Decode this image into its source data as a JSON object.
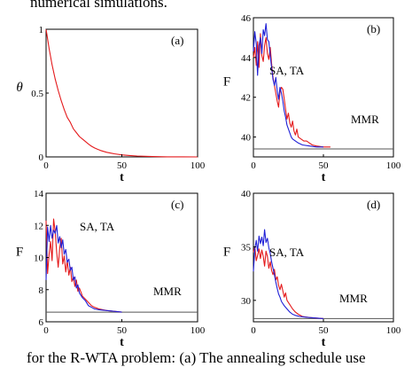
{
  "header_text": "numerical simulations.",
  "footer_text": "for the R-WTA problem: (a) The annealing schedule use",
  "colors": {
    "red": "#e41a1c",
    "blue": "#1f1fd6",
    "ref": "#555555",
    "frame": "#000000"
  },
  "chart_data": [
    {
      "type": "line",
      "panel_label": "(a)",
      "xlabel": "t",
      "ylabel": "θ",
      "xlim": [
        0,
        100
      ],
      "ylim": [
        0,
        1
      ],
      "xticks": [
        "0",
        "50",
        "100"
      ],
      "yticks": [
        "0",
        "0.5",
        "1"
      ],
      "annotations": [],
      "ref_line": null,
      "series": [
        {
          "color": "red",
          "points": [
            [
              0,
              1.0
            ],
            [
              2,
              0.85
            ],
            [
              4,
              0.72
            ],
            [
              6,
              0.61
            ],
            [
              8,
              0.52
            ],
            [
              10,
              0.44
            ],
            [
              12,
              0.37
            ],
            [
              14,
              0.31
            ],
            [
              16,
              0.27
            ],
            [
              18,
              0.22
            ],
            [
              20,
              0.19
            ],
            [
              22,
              0.16
            ],
            [
              24,
              0.14
            ],
            [
              26,
              0.12
            ],
            [
              28,
              0.1
            ],
            [
              30,
              0.083
            ],
            [
              32,
              0.07
            ],
            [
              34,
              0.06
            ],
            [
              36,
              0.05
            ],
            [
              38,
              0.043
            ],
            [
              40,
              0.036
            ],
            [
              45,
              0.024
            ],
            [
              50,
              0.016
            ],
            [
              55,
              0.011
            ],
            [
              60,
              0.007
            ],
            [
              70,
              0.003
            ],
            [
              80,
              0.001
            ],
            [
              90,
              0.0005
            ],
            [
              100,
              0.0
            ]
          ]
        }
      ]
    },
    {
      "type": "line",
      "panel_label": "(b)",
      "xlabel": "t",
      "ylabel": "F",
      "xlim": [
        0,
        100
      ],
      "ylim": [
        39,
        46
      ],
      "xticks": [
        "0",
        "50",
        "100"
      ],
      "yticks": [
        "40",
        "42",
        "44",
        "46"
      ],
      "annotations": [
        "SA, TA",
        "MMR"
      ],
      "ref_line": {
        "y": 39.4,
        "x_end": 100
      },
      "series": [
        {
          "color": "red",
          "points": [
            [
              0,
              44.0
            ],
            [
              1,
              44.5
            ],
            [
              2,
              43.6
            ],
            [
              3,
              44.8
            ],
            [
              4,
              43.5
            ],
            [
              5,
              45.2
            ],
            [
              6,
              44.1
            ],
            [
              7,
              43.8
            ],
            [
              8,
              44.6
            ],
            [
              9,
              45.0
            ],
            [
              10,
              44.2
            ],
            [
              11,
              43.9
            ],
            [
              12,
              44.5
            ],
            [
              13,
              43.7
            ],
            [
              14,
              43.0
            ],
            [
              15,
              42.6
            ],
            [
              16,
              42.2
            ],
            [
              17,
              41.8
            ],
            [
              18,
              41.5
            ],
            [
              19,
              42.3
            ],
            [
              20,
              42.5
            ],
            [
              21,
              42.4
            ],
            [
              22,
              41.9
            ],
            [
              23,
              41.4
            ],
            [
              24,
              40.9
            ],
            [
              25,
              41.2
            ],
            [
              26,
              40.7
            ],
            [
              27,
              40.5
            ],
            [
              28,
              40.8
            ],
            [
              29,
              40.3
            ],
            [
              30,
              40.1
            ],
            [
              31,
              40.4
            ],
            [
              32,
              40.0
            ],
            [
              34,
              39.9
            ],
            [
              36,
              39.8
            ],
            [
              38,
              39.8
            ],
            [
              40,
              39.7
            ],
            [
              42,
              39.6
            ],
            [
              45,
              39.55
            ],
            [
              50,
              39.5
            ],
            [
              55,
              39.5
            ]
          ]
        },
        {
          "color": "blue",
          "points": [
            [
              0,
              44.3
            ],
            [
              1,
              45.3
            ],
            [
              2,
              44.7
            ],
            [
              3,
              43.1
            ],
            [
              4,
              44.6
            ],
            [
              5,
              45.0
            ],
            [
              6,
              44.2
            ],
            [
              7,
              45.4
            ],
            [
              8,
              45.1
            ],
            [
              9,
              45.7
            ],
            [
              10,
              44.9
            ],
            [
              11,
              44.8
            ],
            [
              12,
              44.1
            ],
            [
              13,
              43.5
            ],
            [
              14,
              42.9
            ],
            [
              15,
              42.6
            ],
            [
              16,
              43.0
            ],
            [
              17,
              42.3
            ],
            [
              18,
              41.9
            ],
            [
              19,
              42.5
            ],
            [
              20,
              42.2
            ],
            [
              21,
              41.8
            ],
            [
              22,
              41.3
            ],
            [
              23,
              41.0
            ],
            [
              24,
              40.6
            ],
            [
              25,
              40.4
            ],
            [
              26,
              40.2
            ],
            [
              27,
              40.0
            ],
            [
              28,
              39.9
            ],
            [
              30,
              39.8
            ],
            [
              32,
              39.7
            ],
            [
              35,
              39.6
            ],
            [
              40,
              39.55
            ],
            [
              45,
              39.5
            ],
            [
              50,
              39.5
            ]
          ]
        }
      ]
    },
    {
      "type": "line",
      "panel_label": "(c)",
      "xlabel": "t",
      "ylabel": "F",
      "xlim": [
        0,
        100
      ],
      "ylim": [
        6,
        14
      ],
      "xticks": [
        "0",
        "50",
        "100"
      ],
      "yticks": [
        "6",
        "8",
        "10",
        "12",
        "14"
      ],
      "annotations": [
        "SA, TA",
        "MMR"
      ],
      "ref_line": {
        "y": 6.6,
        "x_end": 100
      },
      "series": [
        {
          "color": "red",
          "points": [
            [
              0,
              12.3
            ],
            [
              1,
              9.0
            ],
            [
              2,
              10.2
            ],
            [
              3,
              11.0
            ],
            [
              4,
              9.8
            ],
            [
              5,
              12.4
            ],
            [
              6,
              11.6
            ],
            [
              7,
              10.3
            ],
            [
              8,
              9.4
            ],
            [
              9,
              10.6
            ],
            [
              10,
              11.2
            ],
            [
              11,
              9.6
            ],
            [
              12,
              10.1
            ],
            [
              13,
              9.1
            ],
            [
              14,
              9.8
            ],
            [
              15,
              8.9
            ],
            [
              16,
              9.4
            ],
            [
              17,
              8.5
            ],
            [
              18,
              8.8
            ],
            [
              19,
              8.2
            ],
            [
              20,
              8.6
            ],
            [
              21,
              7.9
            ],
            [
              22,
              8.1
            ],
            [
              24,
              7.6
            ],
            [
              26,
              7.4
            ],
            [
              28,
              7.2
            ],
            [
              30,
              7.0
            ],
            [
              32,
              6.9
            ],
            [
              35,
              6.8
            ],
            [
              40,
              6.7
            ],
            [
              45,
              6.65
            ],
            [
              50,
              6.6
            ]
          ]
        },
        {
          "color": "blue",
          "points": [
            [
              0,
              8.6
            ],
            [
              1,
              11.9
            ],
            [
              2,
              11.0
            ],
            [
              3,
              12.0
            ],
            [
              4,
              11.2
            ],
            [
              5,
              11.7
            ],
            [
              6,
              11.5
            ],
            [
              7,
              12.0
            ],
            [
              8,
              10.9
            ],
            [
              9,
              11.3
            ],
            [
              10,
              10.6
            ],
            [
              11,
              11.1
            ],
            [
              12,
              10.2
            ],
            [
              13,
              10.5
            ],
            [
              14,
              9.7
            ],
            [
              15,
              9.9
            ],
            [
              16,
              9.2
            ],
            [
              17,
              9.4
            ],
            [
              18,
              8.6
            ],
            [
              19,
              8.8
            ],
            [
              20,
              8.1
            ],
            [
              21,
              8.3
            ],
            [
              22,
              7.8
            ],
            [
              24,
              7.5
            ],
            [
              26,
              7.3
            ],
            [
              28,
              7.0
            ],
            [
              30,
              6.9
            ],
            [
              32,
              6.8
            ],
            [
              35,
              6.75
            ],
            [
              40,
              6.7
            ],
            [
              45,
              6.65
            ],
            [
              50,
              6.6
            ]
          ]
        }
      ]
    },
    {
      "type": "line",
      "panel_label": "(d)",
      "xlabel": "t",
      "ylabel": "F",
      "xlim": [
        0,
        100
      ],
      "ylim": [
        28,
        40
      ],
      "xticks": [
        "0",
        "50",
        "100"
      ],
      "yticks": [
        "30",
        "35",
        "40"
      ],
      "annotations": [
        "SA, TA",
        "MMR"
      ],
      "ref_line": {
        "y": 28.3,
        "x_end": 100
      },
      "series": [
        {
          "color": "red",
          "points": [
            [
              0,
              34.5
            ],
            [
              1,
              35.0
            ],
            [
              2,
              33.7
            ],
            [
              3,
              34.2
            ],
            [
              4,
              34.8
            ],
            [
              5,
              33.9
            ],
            [
              6,
              34.7
            ],
            [
              7,
              34.1
            ],
            [
              8,
              33.2
            ],
            [
              9,
              34.6
            ],
            [
              10,
              34.1
            ],
            [
              11,
              33.0
            ],
            [
              12,
              33.6
            ],
            [
              13,
              32.8
            ],
            [
              14,
              32.4
            ],
            [
              15,
              32.9
            ],
            [
              16,
              31.9
            ],
            [
              17,
              32.2
            ],
            [
              18,
              31.4
            ],
            [
              19,
              31.0
            ],
            [
              20,
              31.5
            ],
            [
              21,
              30.9
            ],
            [
              22,
              30.3
            ],
            [
              23,
              30.7
            ],
            [
              24,
              30.0
            ],
            [
              26,
              29.6
            ],
            [
              28,
              29.2
            ],
            [
              30,
              28.9
            ],
            [
              32,
              28.7
            ],
            [
              35,
              28.5
            ],
            [
              40,
              28.4
            ],
            [
              45,
              28.35
            ],
            [
              50,
              28.3
            ]
          ]
        },
        {
          "color": "blue",
          "points": [
            [
              0,
              32.7
            ],
            [
              1,
              34.8
            ],
            [
              2,
              35.6
            ],
            [
              3,
              34.6
            ],
            [
              4,
              36.0
            ],
            [
              5,
              35.3
            ],
            [
              6,
              35.9
            ],
            [
              7,
              35.1
            ],
            [
              8,
              36.6
            ],
            [
              9,
              35.4
            ],
            [
              10,
              35.8
            ],
            [
              11,
              34.9
            ],
            [
              12,
              34.4
            ],
            [
              13,
              33.6
            ],
            [
              14,
              33.0
            ],
            [
              15,
              32.4
            ],
            [
              16,
              31.7
            ],
            [
              17,
              31.1
            ],
            [
              18,
              30.6
            ],
            [
              19,
              30.3
            ],
            [
              20,
              29.9
            ],
            [
              22,
              29.5
            ],
            [
              24,
              29.2
            ],
            [
              26,
              28.9
            ],
            [
              28,
              28.7
            ],
            [
              30,
              28.6
            ],
            [
              33,
              28.5
            ],
            [
              36,
              28.45
            ],
            [
              40,
              28.4
            ],
            [
              45,
              28.35
            ],
            [
              50,
              28.3
            ]
          ]
        }
      ]
    }
  ]
}
